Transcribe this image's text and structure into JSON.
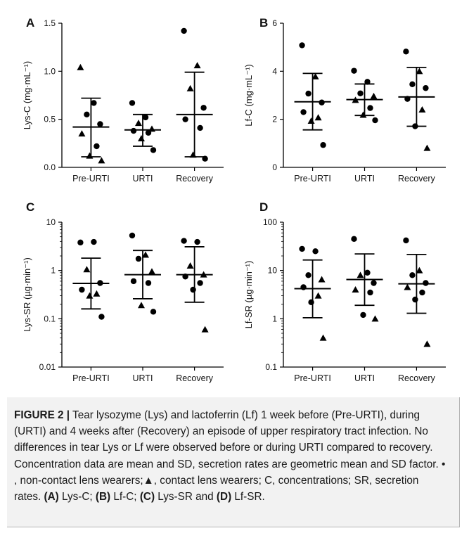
{
  "figure": {
    "panels": [
      "A",
      "B",
      "C",
      "D"
    ]
  },
  "chart_data": [
    {
      "panel": "A",
      "type": "scatter",
      "title": "",
      "xlabel": "",
      "ylabel": "Lys-C (mg·mL⁻¹)",
      "y_scale": "linear",
      "ylim": [
        0,
        1.5
      ],
      "y_ticks": [
        0,
        0.5,
        1.0,
        1.5
      ],
      "y_tick_labels": [
        "0.0",
        "0.5",
        "1.0",
        "1.5"
      ],
      "categories": [
        "Pre-URTI",
        "URTI",
        "Recovery"
      ],
      "summary": [
        {
          "category": "Pre-URTI",
          "center": 0.42,
          "lower": 0.11,
          "upper": 0.72
        },
        {
          "category": "URTI",
          "center": 0.39,
          "lower": 0.22,
          "upper": 0.55
        },
        {
          "category": "Recovery",
          "center": 0.55,
          "lower": 0.11,
          "upper": 0.99
        }
      ],
      "points": [
        {
          "category": "Pre-URTI",
          "y": 1.04,
          "marker": "triangle"
        },
        {
          "category": "Pre-URTI",
          "y": 0.67,
          "marker": "circle"
        },
        {
          "category": "Pre-URTI",
          "y": 0.55,
          "marker": "circle"
        },
        {
          "category": "Pre-URTI",
          "y": 0.45,
          "marker": "circle"
        },
        {
          "category": "Pre-URTI",
          "y": 0.35,
          "marker": "triangle"
        },
        {
          "category": "Pre-URTI",
          "y": 0.22,
          "marker": "circle"
        },
        {
          "category": "Pre-URTI",
          "y": 0.12,
          "marker": "triangle"
        },
        {
          "category": "Pre-URTI",
          "y": 0.07,
          "marker": "triangle"
        },
        {
          "category": "URTI",
          "y": 0.67,
          "marker": "circle"
        },
        {
          "category": "URTI",
          "y": 0.52,
          "marker": "circle"
        },
        {
          "category": "URTI",
          "y": 0.46,
          "marker": "triangle"
        },
        {
          "category": "URTI",
          "y": 0.4,
          "marker": "triangle"
        },
        {
          "category": "URTI",
          "y": 0.38,
          "marker": "circle"
        },
        {
          "category": "URTI",
          "y": 0.36,
          "marker": "circle"
        },
        {
          "category": "URTI",
          "y": 0.3,
          "marker": "triangle"
        },
        {
          "category": "URTI",
          "y": 0.18,
          "marker": "circle"
        },
        {
          "category": "Recovery",
          "y": 1.42,
          "marker": "circle"
        },
        {
          "category": "Recovery",
          "y": 1.06,
          "marker": "triangle"
        },
        {
          "category": "Recovery",
          "y": 0.82,
          "marker": "triangle"
        },
        {
          "category": "Recovery",
          "y": 0.62,
          "marker": "circle"
        },
        {
          "category": "Recovery",
          "y": 0.5,
          "marker": "circle"
        },
        {
          "category": "Recovery",
          "y": 0.41,
          "marker": "circle"
        },
        {
          "category": "Recovery",
          "y": 0.13,
          "marker": "triangle"
        },
        {
          "category": "Recovery",
          "y": 0.09,
          "marker": "circle"
        }
      ]
    },
    {
      "panel": "B",
      "type": "scatter",
      "title": "",
      "xlabel": "",
      "ylabel": "Lf-C (mg·mL⁻¹)",
      "y_scale": "linear",
      "ylim": [
        0,
        6
      ],
      "y_ticks": [
        0,
        2,
        4,
        6
      ],
      "y_tick_labels": [
        "0",
        "2",
        "4",
        "6"
      ],
      "categories": [
        "Pre-URTI",
        "URTI",
        "Recovery"
      ],
      "summary": [
        {
          "category": "Pre-URTI",
          "center": 2.73,
          "lower": 1.56,
          "upper": 3.91
        },
        {
          "category": "URTI",
          "center": 2.82,
          "lower": 2.16,
          "upper": 3.47
        },
        {
          "category": "Recovery",
          "center": 2.93,
          "lower": 1.71,
          "upper": 4.16
        }
      ],
      "points": [
        {
          "category": "Pre-URTI",
          "y": 5.08,
          "marker": "circle"
        },
        {
          "category": "Pre-URTI",
          "y": 3.78,
          "marker": "triangle"
        },
        {
          "category": "Pre-URTI",
          "y": 3.07,
          "marker": "circle"
        },
        {
          "category": "Pre-URTI",
          "y": 2.7,
          "marker": "circle"
        },
        {
          "category": "Pre-URTI",
          "y": 2.3,
          "marker": "circle"
        },
        {
          "category": "Pre-URTI",
          "y": 2.07,
          "marker": "triangle"
        },
        {
          "category": "Pre-URTI",
          "y": 1.93,
          "marker": "triangle"
        },
        {
          "category": "Pre-URTI",
          "y": 0.93,
          "marker": "circle"
        },
        {
          "category": "URTI",
          "y": 4.02,
          "marker": "circle"
        },
        {
          "category": "URTI",
          "y": 3.56,
          "marker": "circle"
        },
        {
          "category": "URTI",
          "y": 3.08,
          "marker": "circle"
        },
        {
          "category": "URTI",
          "y": 2.96,
          "marker": "triangle"
        },
        {
          "category": "URTI",
          "y": 2.8,
          "marker": "triangle"
        },
        {
          "category": "URTI",
          "y": 2.47,
          "marker": "circle"
        },
        {
          "category": "URTI",
          "y": 2.18,
          "marker": "triangle"
        },
        {
          "category": "URTI",
          "y": 1.96,
          "marker": "circle"
        },
        {
          "category": "Recovery",
          "y": 4.82,
          "marker": "circle"
        },
        {
          "category": "Recovery",
          "y": 4.0,
          "marker": "triangle"
        },
        {
          "category": "Recovery",
          "y": 3.46,
          "marker": "circle"
        },
        {
          "category": "Recovery",
          "y": 3.3,
          "marker": "circle"
        },
        {
          "category": "Recovery",
          "y": 2.85,
          "marker": "circle"
        },
        {
          "category": "Recovery",
          "y": 2.4,
          "marker": "triangle"
        },
        {
          "category": "Recovery",
          "y": 1.71,
          "marker": "circle"
        },
        {
          "category": "Recovery",
          "y": 0.8,
          "marker": "triangle"
        }
      ]
    },
    {
      "panel": "C",
      "type": "scatter",
      "title": "",
      "xlabel": "",
      "ylabel": "Lys-SR (µg·min⁻¹)",
      "y_scale": "log",
      "ylim": [
        0.01,
        10
      ],
      "y_ticks": [
        0.01,
        0.1,
        1,
        10
      ],
      "y_tick_labels": [
        "0.01",
        "0.1",
        "1",
        "10"
      ],
      "categories": [
        "Pre-URTI",
        "URTI",
        "Recovery"
      ],
      "summary": [
        {
          "category": "Pre-URTI",
          "center": 0.54,
          "lower": 0.16,
          "upper": 1.8
        },
        {
          "category": "URTI",
          "center": 0.82,
          "lower": 0.26,
          "upper": 2.6
        },
        {
          "category": "Recovery",
          "center": 0.82,
          "lower": 0.22,
          "upper": 3.1
        }
      ],
      "points": [
        {
          "category": "Pre-URTI",
          "y": 3.8,
          "marker": "circle"
        },
        {
          "category": "Pre-URTI",
          "y": 3.9,
          "marker": "circle"
        },
        {
          "category": "Pre-URTI",
          "y": 1.05,
          "marker": "triangle"
        },
        {
          "category": "Pre-URTI",
          "y": 0.55,
          "marker": "circle"
        },
        {
          "category": "Pre-URTI",
          "y": 0.4,
          "marker": "circle"
        },
        {
          "category": "Pre-URTI",
          "y": 0.33,
          "marker": "triangle"
        },
        {
          "category": "Pre-URTI",
          "y": 0.3,
          "marker": "triangle"
        },
        {
          "category": "Pre-URTI",
          "y": 0.11,
          "marker": "circle"
        },
        {
          "category": "URTI",
          "y": 5.3,
          "marker": "circle"
        },
        {
          "category": "URTI",
          "y": 2.1,
          "marker": "triangle"
        },
        {
          "category": "URTI",
          "y": 1.75,
          "marker": "circle"
        },
        {
          "category": "URTI",
          "y": 0.95,
          "marker": "triangle"
        },
        {
          "category": "URTI",
          "y": 0.6,
          "marker": "circle"
        },
        {
          "category": "URTI",
          "y": 0.55,
          "marker": "circle"
        },
        {
          "category": "URTI",
          "y": 0.19,
          "marker": "triangle"
        },
        {
          "category": "URTI",
          "y": 0.14,
          "marker": "circle"
        },
        {
          "category": "Recovery",
          "y": 4.1,
          "marker": "circle"
        },
        {
          "category": "Recovery",
          "y": 3.9,
          "marker": "circle"
        },
        {
          "category": "Recovery",
          "y": 1.25,
          "marker": "triangle"
        },
        {
          "category": "Recovery",
          "y": 0.82,
          "marker": "triangle"
        },
        {
          "category": "Recovery",
          "y": 0.75,
          "marker": "circle"
        },
        {
          "category": "Recovery",
          "y": 0.55,
          "marker": "circle"
        },
        {
          "category": "Recovery",
          "y": 0.4,
          "marker": "circle"
        },
        {
          "category": "Recovery",
          "y": 0.06,
          "marker": "triangle"
        }
      ]
    },
    {
      "panel": "D",
      "type": "scatter",
      "title": "",
      "xlabel": "",
      "ylabel": "Lf-SR (µg·min⁻¹)",
      "y_scale": "log",
      "ylim": [
        0.1,
        100
      ],
      "y_ticks": [
        0.1,
        1,
        10,
        100
      ],
      "y_tick_labels": [
        "0.1",
        "1",
        "10",
        "100"
      ],
      "categories": [
        "Pre-URTI",
        "URTI",
        "Recovery"
      ],
      "summary": [
        {
          "category": "Pre-URTI",
          "center": 4.2,
          "lower": 1.05,
          "upper": 16.5
        },
        {
          "category": "URTI",
          "center": 6.5,
          "lower": 1.9,
          "upper": 22
        },
        {
          "category": "Recovery",
          "center": 5.3,
          "lower": 1.3,
          "upper": 21.5
        }
      ],
      "points": [
        {
          "category": "Pre-URTI",
          "y": 28,
          "marker": "circle"
        },
        {
          "category": "Pre-URTI",
          "y": 25,
          "marker": "circle"
        },
        {
          "category": "Pre-URTI",
          "y": 8,
          "marker": "circle"
        },
        {
          "category": "Pre-URTI",
          "y": 6.5,
          "marker": "triangle"
        },
        {
          "category": "Pre-URTI",
          "y": 4.5,
          "marker": "circle"
        },
        {
          "category": "Pre-URTI",
          "y": 3.0,
          "marker": "triangle"
        },
        {
          "category": "Pre-URTI",
          "y": 2.2,
          "marker": "circle"
        },
        {
          "category": "Pre-URTI",
          "y": 0.4,
          "marker": "triangle"
        },
        {
          "category": "URTI",
          "y": 45,
          "marker": "circle"
        },
        {
          "category": "URTI",
          "y": 9,
          "marker": "circle"
        },
        {
          "category": "URTI",
          "y": 8,
          "marker": "triangle"
        },
        {
          "category": "URTI",
          "y": 5.5,
          "marker": "circle"
        },
        {
          "category": "URTI",
          "y": 4.0,
          "marker": "triangle"
        },
        {
          "category": "URTI",
          "y": 3.5,
          "marker": "circle"
        },
        {
          "category": "URTI",
          "y": 1.2,
          "marker": "circle"
        },
        {
          "category": "URTI",
          "y": 1.0,
          "marker": "triangle"
        },
        {
          "category": "Recovery",
          "y": 42,
          "marker": "circle"
        },
        {
          "category": "Recovery",
          "y": 10,
          "marker": "triangle"
        },
        {
          "category": "Recovery",
          "y": 8,
          "marker": "circle"
        },
        {
          "category": "Recovery",
          "y": 5.5,
          "marker": "circle"
        },
        {
          "category": "Recovery",
          "y": 4.5,
          "marker": "triangle"
        },
        {
          "category": "Recovery",
          "y": 3.5,
          "marker": "circle"
        },
        {
          "category": "Recovery",
          "y": 2.5,
          "marker": "circle"
        },
        {
          "category": "Recovery",
          "y": 0.3,
          "marker": "triangle"
        }
      ]
    }
  ],
  "caption": {
    "label": "FIGURE 2 |",
    "s1": " Tear lysozyme (Lys) and lactoferrin (Lf) 1 week before (Pre-URTI), during (URTI) and 4 weeks after (Recovery) an episode of upper respiratory tract infection. No differences in tear Lys or Lf were observed before or during URTI compared to recovery. Concentration data are mean and SD, secretion rates are geometric mean and SD factor. ",
    "sym_circle": "•",
    "s2": ", non-contact lens wearers;",
    "sym_triangle": "▲",
    "s3": ", contact lens wearers; C, concentrations; SR, secretion rates. ",
    "ref_a": "(A)",
    "s4": " Lys-C; ",
    "ref_b": "(B)",
    "s5": " Lf-C; ",
    "ref_c": "(C)",
    "s6": " Lys-SR and ",
    "ref_d": "(D)",
    "s7": " Lf-SR."
  },
  "colors": {
    "marker": "#000000",
    "axis": "#000000",
    "caption_bg": "#f2f2f2"
  }
}
